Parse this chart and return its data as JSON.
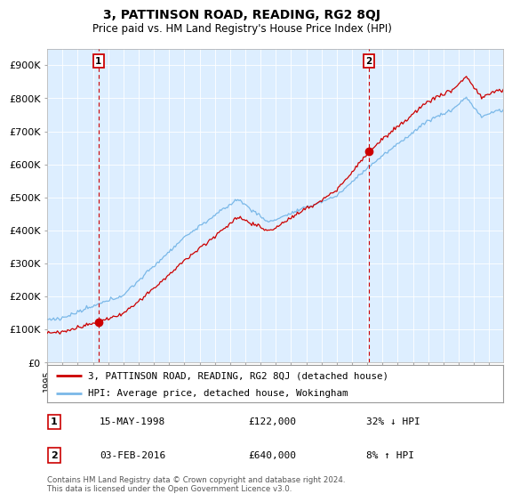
{
  "title": "3, PATTINSON ROAD, READING, RG2 8QJ",
  "subtitle": "Price paid vs. HM Land Registry's House Price Index (HPI)",
  "sale1_date": "15-MAY-1998",
  "sale1_price": 122000,
  "sale1_pct": "32% ↓ HPI",
  "sale1_year": 1998.37,
  "sale2_date": "03-FEB-2016",
  "sale2_price": 640000,
  "sale2_pct": "8% ↑ HPI",
  "sale2_year": 2016.09,
  "legend_line1": "3, PATTINSON ROAD, READING, RG2 8QJ (detached house)",
  "legend_line2": "HPI: Average price, detached house, Wokingham",
  "footer": "Contains HM Land Registry data © Crown copyright and database right 2024.\nThis data is licensed under the Open Government Licence v3.0.",
  "hpi_color": "#7ab8e8",
  "price_color": "#cc0000",
  "dashed_color": "#cc0000",
  "ylim_max": 950000,
  "ylim_min": 0,
  "background_color": "#ffffff",
  "plot_bg_color": "#ddeeff",
  "grid_color": "#ffffff"
}
